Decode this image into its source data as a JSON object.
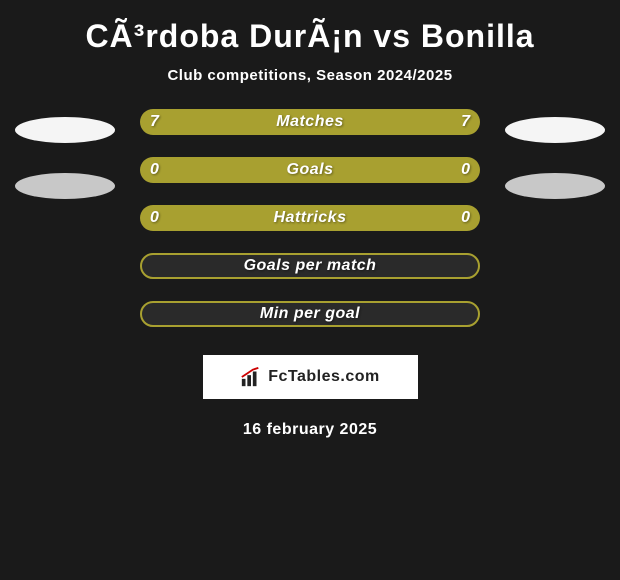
{
  "title": "CÃ³rdoba DurÃ¡n vs Bonilla",
  "subtitle": "Club competitions, Season 2024/2025",
  "colors": {
    "background": "#1a1a1a",
    "bar_fill": "#a8a030",
    "bar_outline_fill": "#2a2a2a",
    "bar_outline_border": "#a8a030",
    "ellipse_white": "#f5f5f5",
    "ellipse_gray": "#c8c8c8",
    "text": "#ffffff",
    "logo_bg": "#ffffff",
    "logo_text": "#222222"
  },
  "left_ellipses": [
    {
      "color": "#f5f5f5"
    },
    {
      "color": "#c8c8c8"
    }
  ],
  "right_ellipses": [
    {
      "color": "#f5f5f5"
    },
    {
      "color": "#c8c8c8"
    }
  ],
  "bars": [
    {
      "label": "Matches",
      "left": "7",
      "right": "7",
      "filled": true
    },
    {
      "label": "Goals",
      "left": "0",
      "right": "0",
      "filled": true
    },
    {
      "label": "Hattricks",
      "left": "0",
      "right": "0",
      "filled": true
    },
    {
      "label": "Goals per match",
      "left": "",
      "right": "",
      "filled": false
    },
    {
      "label": "Min per goal",
      "left": "",
      "right": "",
      "filled": false
    }
  ],
  "logo": {
    "text": "FcTables.com"
  },
  "date": "16 february 2025"
}
